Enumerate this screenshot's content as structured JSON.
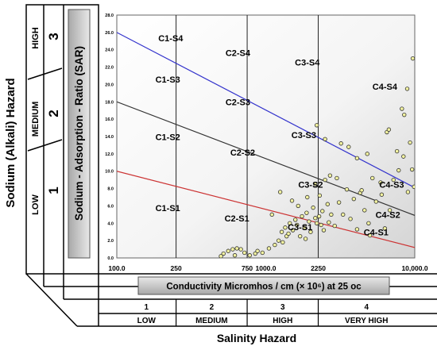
{
  "chart_data": {
    "type": "scatter",
    "title": "",
    "xlabel": "Conductivity Micromhos / cm (× 10⁶) at 25 oc",
    "ylabel": "Sodium - Adsorption - Ratio (SAR)",
    "x_scale": "log",
    "x_ticks": [
      {
        "value": 100,
        "label": "100.0"
      },
      {
        "value": 250,
        "label": "250"
      },
      {
        "value": 750,
        "label": "750"
      },
      {
        "value": 1000,
        "label": "1000.0"
      },
      {
        "value": 2250,
        "label": "2250"
      },
      {
        "value": 10000,
        "label": "10,000.0"
      }
    ],
    "xlim": [
      100,
      10000
    ],
    "y_ticks": [
      "0.0",
      "2.0",
      "4.0",
      "6.0",
      "8.0",
      "10.0",
      "12.0",
      "14.0",
      "16.0",
      "18.0",
      "20.0",
      "22.0",
      "24.0",
      "26.0",
      "28.0"
    ],
    "ylim": [
      0,
      28
    ],
    "class_boundaries_x": [
      250,
      750,
      2250
    ],
    "lines": [
      {
        "color": "#3333cc",
        "points": [
          [
            100,
            26
          ],
          [
            10000,
            8.1
          ]
        ]
      },
      {
        "color": "#333333",
        "points": [
          [
            100,
            18
          ],
          [
            10000,
            4.9
          ]
        ]
      },
      {
        "color": "#cc3333",
        "points": [
          [
            100,
            10
          ],
          [
            10000,
            1.2
          ]
        ]
      }
    ],
    "region_labels": [
      {
        "text": "C1-S4",
        "x": 230,
        "y": 25.0
      },
      {
        "text": "C2-S4",
        "x": 650,
        "y": 23.3
      },
      {
        "text": "C3-S4",
        "x": 1900,
        "y": 22.2
      },
      {
        "text": "C4-S4",
        "x": 6300,
        "y": 19.4
      },
      {
        "text": "C1-S3",
        "x": 220,
        "y": 20.2
      },
      {
        "text": "C2-S3",
        "x": 650,
        "y": 17.6
      },
      {
        "text": "C3-S3",
        "x": 1800,
        "y": 13.8
      },
      {
        "text": "C4-S3",
        "x": 7000,
        "y": 8.1
      },
      {
        "text": "C1-S2",
        "x": 220,
        "y": 13.6
      },
      {
        "text": "C2-S2",
        "x": 700,
        "y": 11.8
      },
      {
        "text": "C3-S2",
        "x": 2000,
        "y": 8.1
      },
      {
        "text": "C4-S2",
        "x": 6600,
        "y": 4.6
      },
      {
        "text": "C1-S1",
        "x": 220,
        "y": 5.4
      },
      {
        "text": "C2-S1",
        "x": 640,
        "y": 4.2
      },
      {
        "text": "C3-S1",
        "x": 1700,
        "y": 3.2
      },
      {
        "text": "C4-S1",
        "x": 5500,
        "y": 2.6
      }
    ],
    "points": [
      [
        520,
        0.5
      ],
      [
        560,
        0.8
      ],
      [
        600,
        1.0
      ],
      [
        640,
        1.1
      ],
      [
        680,
        1.0
      ],
      [
        720,
        0.6
      ],
      [
        500,
        0.2
      ],
      [
        620,
        0.3
      ],
      [
        780,
        0.3
      ],
      [
        850,
        0.5
      ],
      [
        880,
        0.8
      ],
      [
        950,
        0.6
      ],
      [
        1050,
        1.1
      ],
      [
        1150,
        1.5
      ],
      [
        1220,
        2.0
      ],
      [
        1300,
        1.8
      ],
      [
        1380,
        2.5
      ],
      [
        1280,
        3.0
      ],
      [
        1350,
        3.5
      ],
      [
        1420,
        2.8
      ],
      [
        1450,
        4.0
      ],
      [
        1520,
        3.2
      ],
      [
        1580,
        4.4
      ],
      [
        1620,
        3.8
      ],
      [
        1700,
        2.5
      ],
      [
        1750,
        4.8
      ],
      [
        1820,
        3.5
      ],
      [
        1880,
        5.2
      ],
      [
        1950,
        4.2
      ],
      [
        2000,
        3.0
      ],
      [
        2080,
        5.8
      ],
      [
        2150,
        4.6
      ],
      [
        2200,
        4.0
      ],
      [
        2280,
        4.8
      ],
      [
        2350,
        3.8
      ],
      [
        2400,
        5.4
      ],
      [
        2450,
        3.2
      ],
      [
        1100,
        5.0
      ],
      [
        1250,
        7.6
      ],
      [
        1500,
        6.6
      ],
      [
        1650,
        6.0
      ],
      [
        1900,
        7.0
      ],
      [
        2150,
        8.5
      ],
      [
        2300,
        7.2
      ],
      [
        2500,
        9.0
      ],
      [
        2600,
        6.2
      ],
      [
        2750,
        5.0
      ],
      [
        2900,
        3.7
      ],
      [
        3100,
        6.4
      ],
      [
        3300,
        5.0
      ],
      [
        3500,
        7.9
      ],
      [
        3700,
        4.5
      ],
      [
        3900,
        6.8
      ],
      [
        4100,
        3.3
      ],
      [
        4300,
        7.5
      ],
      [
        4600,
        5.5
      ],
      [
        4900,
        4.0
      ],
      [
        5200,
        9.2
      ],
      [
        5500,
        6.5
      ],
      [
        5900,
        8.7
      ],
      [
        6300,
        3.4
      ],
      [
        6800,
        5.5
      ],
      [
        7200,
        9.0
      ],
      [
        7800,
        10.1
      ],
      [
        8400,
        11.7
      ],
      [
        9000,
        7.6
      ],
      [
        2700,
        9.5
      ],
      [
        3000,
        9.2
      ],
      [
        3600,
        12.8
      ],
      [
        4100,
        11.5
      ],
      [
        4800,
        12.0
      ],
      [
        6500,
        14.5
      ],
      [
        6700,
        14.8
      ],
      [
        7600,
        12.3
      ],
      [
        8500,
        16.5
      ],
      [
        8900,
        19.5
      ],
      [
        9300,
        13.3
      ],
      [
        9700,
        23.0
      ],
      [
        2200,
        15.3
      ],
      [
        2500,
        13.7
      ],
      [
        3200,
        13.2
      ],
      [
        8200,
        17.2
      ],
      [
        9600,
        10.2
      ],
      [
        9900,
        8.2
      ],
      [
        6000,
        7.3
      ],
      [
        5000,
        2.6
      ],
      [
        4400,
        7.8
      ],
      [
        2650,
        4.1
      ],
      [
        1850,
        2.2
      ]
    ]
  },
  "hazard_axes": {
    "sodium_title": "Sodium (Alkali) Hazard",
    "sodium_levels": [
      {
        "word": "LOW",
        "number": "1"
      },
      {
        "word": "MEDIUM",
        "number": "2"
      },
      {
        "word": "HIGH",
        "number": "3"
      }
    ],
    "salinity_title": "Salinity Hazard",
    "salinity_levels": [
      {
        "number": "1",
        "word": "LOW"
      },
      {
        "number": "2",
        "word": "MEDIUM"
      },
      {
        "number": "3",
        "word": "HIGH"
      },
      {
        "number": "4",
        "word": "VERY HIGH"
      }
    ]
  }
}
